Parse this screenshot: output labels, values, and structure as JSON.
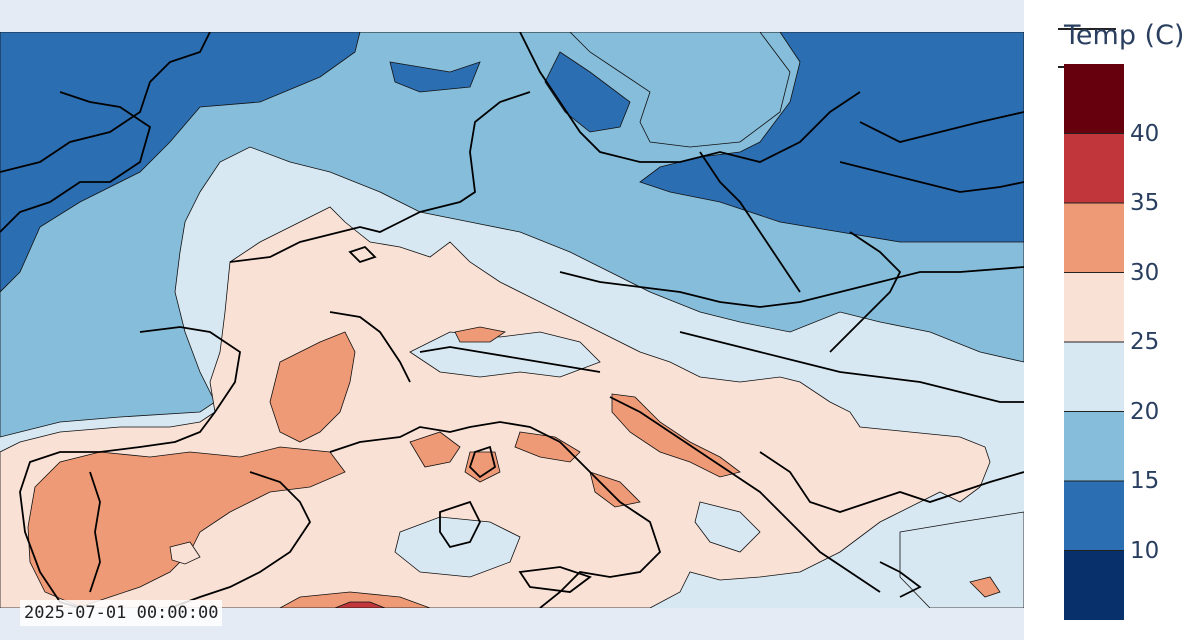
{
  "timestamp": "2025-07-01 00:00:00",
  "colorbar": {
    "title": "Temp (C)",
    "levels": [
      {
        "from": 5,
        "to": 10,
        "color": "#08306b"
      },
      {
        "from": 10,
        "to": 15,
        "color": "#2c6eb2"
      },
      {
        "from": 15,
        "to": 20,
        "color": "#86bddb"
      },
      {
        "from": 20,
        "to": 25,
        "color": "#d8e8f2"
      },
      {
        "from": 25,
        "to": 30,
        "color": "#fae1d6"
      },
      {
        "from": 30,
        "to": 35,
        "color": "#ef9a77"
      },
      {
        "from": 35,
        "to": 40,
        "color": "#c0363a"
      },
      {
        "from": 40,
        "to": 45,
        "color": "#67000d"
      }
    ],
    "tick_labels": [
      "10",
      "15",
      "20",
      "25",
      "30",
      "35",
      "40"
    ],
    "tick_values": [
      10,
      15,
      20,
      25,
      30,
      35,
      40
    ]
  }
}
